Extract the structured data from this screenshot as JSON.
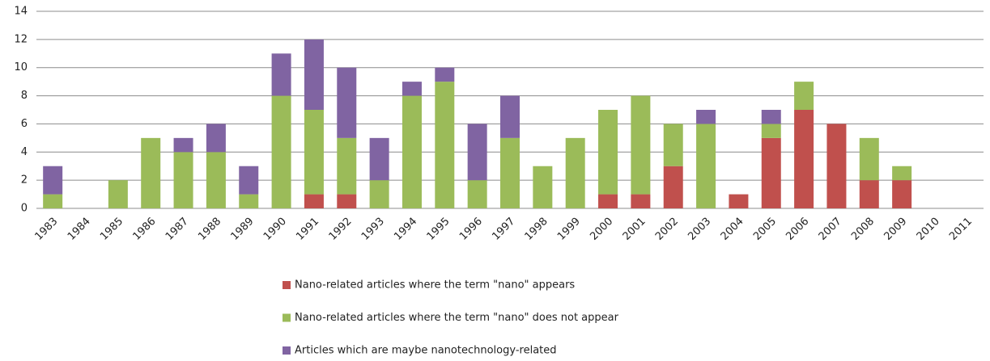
{
  "chart_data": {
    "type": "stacked_bar",
    "categories": [
      "1983",
      "1984",
      "1985",
      "1986",
      "1987",
      "1988",
      "1989",
      "1990",
      "1991",
      "1992",
      "1993",
      "1994",
      "1995",
      "1996",
      "1997",
      "1998",
      "1999",
      "2000",
      "2001",
      "2002",
      "2003",
      "2004",
      "2005",
      "2006",
      "2007",
      "2008",
      "2009",
      "2010",
      "2011"
    ],
    "series": [
      {
        "name": "Nano-related articles where the term \"nano\" appears",
        "color": "#c0504d",
        "values": [
          0,
          0,
          0,
          0,
          0,
          0,
          0,
          0,
          1,
          1,
          0,
          0,
          0,
          0,
          0,
          0,
          0,
          1,
          1,
          3,
          0,
          1,
          5,
          7,
          6,
          2,
          2,
          0,
          0
        ]
      },
      {
        "name": "Nano-related articles where the term \"nano\" does not appear",
        "color": "#9bbb59",
        "values": [
          1,
          0,
          2,
          5,
          4,
          4,
          1,
          8,
          6,
          4,
          2,
          8,
          9,
          2,
          5,
          3,
          5,
          6,
          7,
          3,
          6,
          0,
          1,
          2,
          0,
          3,
          1,
          0,
          0
        ]
      },
      {
        "name": "Articles which are maybe nanotechnology-related",
        "color": "#8064a2",
        "values": [
          2,
          0,
          0,
          0,
          1,
          2,
          2,
          3,
          5,
          5,
          3,
          1,
          1,
          4,
          3,
          0,
          0,
          0,
          0,
          0,
          1,
          0,
          1,
          0,
          0,
          0,
          0,
          0,
          0
        ]
      }
    ],
    "ylim": [
      0,
      14
    ],
    "yticks": [
      0,
      2,
      4,
      6,
      8,
      10,
      12,
      14
    ],
    "grid": true,
    "legend": "bottom"
  }
}
